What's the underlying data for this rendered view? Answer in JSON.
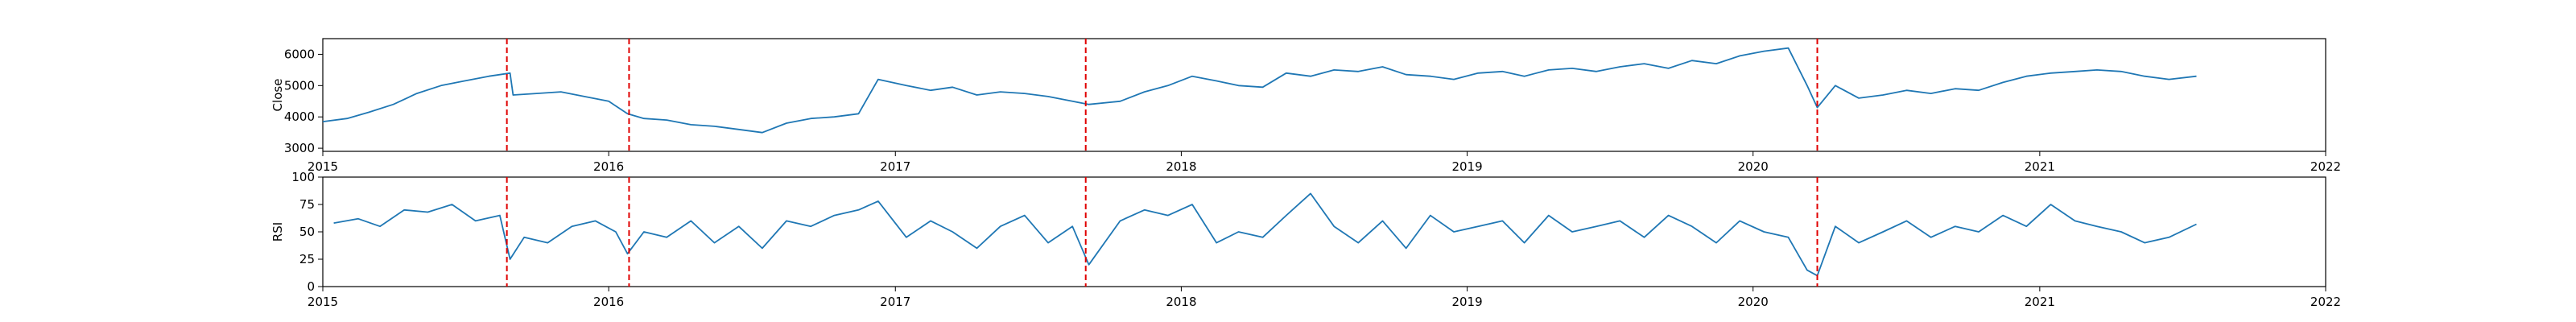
{
  "chart_data": [
    {
      "type": "line",
      "ylabel": "Close",
      "xlim": [
        "2015-01-01",
        "2022-01-01"
      ],
      "ylim": [
        2900,
        6500
      ],
      "x_ticks": [
        "2015",
        "2016",
        "2017",
        "2018",
        "2019",
        "2020",
        "2021",
        "2022"
      ],
      "y_ticks": [
        3000,
        4000,
        5000,
        6000
      ],
      "line_color": "#1f77b4",
      "series": [
        {
          "x": [
            "2015-01-01",
            "2015-02-01",
            "2015-03-01",
            "2015-04-01",
            "2015-05-01",
            "2015-06-01",
            "2015-07-01",
            "2015-08-01",
            "2015-08-28",
            "2015-09-01",
            "2015-10-01",
            "2015-11-01",
            "2015-12-01",
            "2016-01-01",
            "2016-01-25",
            "2016-02-15",
            "2016-03-15",
            "2016-04-15",
            "2016-05-15",
            "2016-06-15",
            "2016-07-15",
            "2016-08-15",
            "2016-09-15",
            "2016-10-15",
            "2016-11-15",
            "2016-12-10",
            "2017-01-15",
            "2017-02-15",
            "2017-03-15",
            "2017-04-15",
            "2017-05-15",
            "2017-06-15",
            "2017-07-15",
            "2017-08-15",
            "2017-09-05",
            "2017-10-15",
            "2017-11-15",
            "2017-12-15",
            "2018-01-15",
            "2018-02-15",
            "2018-03-15",
            "2018-04-15",
            "2018-05-15",
            "2018-06-15",
            "2018-07-15",
            "2018-08-15",
            "2018-09-15",
            "2018-10-15",
            "2018-11-15",
            "2018-12-15",
            "2019-01-15",
            "2019-02-15",
            "2019-03-15",
            "2019-04-15",
            "2019-05-15",
            "2019-06-15",
            "2019-07-15",
            "2019-08-15",
            "2019-09-15",
            "2019-10-15",
            "2019-11-15",
            "2019-12-15",
            "2020-01-15",
            "2020-02-15",
            "2020-03-10",
            "2020-03-23",
            "2020-04-15",
            "2020-05-15",
            "2020-06-15",
            "2020-07-15",
            "2020-08-15",
            "2020-09-15",
            "2020-10-15",
            "2020-11-15",
            "2020-12-15",
            "2021-01-15",
            "2021-02-15",
            "2021-03-15",
            "2021-04-15",
            "2021-05-15",
            "2021-06-15",
            "2021-07-20"
          ],
          "y": [
            3850,
            3950,
            4150,
            4400,
            4750,
            5000,
            5150,
            5300,
            5400,
            4700,
            4750,
            4800,
            4650,
            4500,
            4100,
            3950,
            3900,
            3750,
            3700,
            3600,
            3500,
            3800,
            3950,
            4000,
            4100,
            5200,
            5000,
            4850,
            4950,
            4700,
            4800,
            4750,
            4650,
            4500,
            4400,
            4500,
            4800,
            5000,
            5300,
            5150,
            5000,
            4950,
            5400,
            5300,
            5500,
            5450,
            5600,
            5350,
            5300,
            5200,
            5400,
            5450,
            5300,
            5500,
            5550,
            5450,
            5600,
            5700,
            5550,
            5800,
            5700,
            5950,
            6100,
            6200,
            5000,
            4300,
            5000,
            4600,
            4700,
            4850,
            4750,
            4900,
            4850,
            5100,
            5300,
            5400,
            5450,
            5500,
            5450,
            5300,
            5200,
            5300
          ]
        }
      ]
    },
    {
      "type": "line",
      "ylabel": "RSI",
      "xlim": [
        "2015-01-01",
        "2022-01-01"
      ],
      "ylim": [
        0,
        100
      ],
      "x_ticks": [
        "2015",
        "2016",
        "2017",
        "2018",
        "2019",
        "2020",
        "2021",
        "2022"
      ],
      "y_ticks": [
        0,
        25,
        50,
        75,
        100
      ],
      "line_color": "#1f77b4",
      "series": [
        {
          "x": [
            "2015-01-15",
            "2015-02-15",
            "2015-03-15",
            "2015-04-15",
            "2015-05-15",
            "2015-06-15",
            "2015-07-15",
            "2015-08-15",
            "2015-08-28",
            "2015-09-15",
            "2015-10-15",
            "2015-11-15",
            "2015-12-15",
            "2016-01-10",
            "2016-01-25",
            "2016-02-15",
            "2016-03-15",
            "2016-04-15",
            "2016-05-15",
            "2016-06-15",
            "2016-07-15",
            "2016-08-15",
            "2016-09-15",
            "2016-10-15",
            "2016-11-15",
            "2016-12-10",
            "2017-01-15",
            "2017-02-15",
            "2017-03-15",
            "2017-04-15",
            "2017-05-15",
            "2017-06-15",
            "2017-07-15",
            "2017-08-15",
            "2017-09-05",
            "2017-10-15",
            "2017-11-15",
            "2017-12-15",
            "2018-01-15",
            "2018-02-15",
            "2018-03-15",
            "2018-04-15",
            "2018-05-15",
            "2018-06-15",
            "2018-07-15",
            "2018-08-15",
            "2018-09-15",
            "2018-10-15",
            "2018-11-15",
            "2018-12-15",
            "2019-01-15",
            "2019-02-15",
            "2019-03-15",
            "2019-04-15",
            "2019-05-15",
            "2019-06-15",
            "2019-07-15",
            "2019-08-15",
            "2019-09-15",
            "2019-10-15",
            "2019-11-15",
            "2019-12-15",
            "2020-01-15",
            "2020-02-15",
            "2020-03-10",
            "2020-03-23",
            "2020-04-15",
            "2020-05-15",
            "2020-06-15",
            "2020-07-15",
            "2020-08-15",
            "2020-09-15",
            "2020-10-15",
            "2020-11-15",
            "2020-12-15",
            "2021-01-15",
            "2021-02-15",
            "2021-03-15",
            "2021-04-15",
            "2021-05-15",
            "2021-06-15",
            "2021-07-20"
          ],
          "y": [
            58,
            62,
            55,
            70,
            68,
            75,
            60,
            65,
            25,
            45,
            40,
            55,
            60,
            50,
            30,
            50,
            45,
            60,
            40,
            55,
            35,
            60,
            55,
            65,
            70,
            78,
            45,
            60,
            50,
            35,
            55,
            65,
            40,
            55,
            20,
            60,
            70,
            65,
            75,
            40,
            50,
            45,
            65,
            85,
            55,
            40,
            60,
            35,
            65,
            50,
            55,
            60,
            40,
            65,
            50,
            55,
            60,
            45,
            65,
            55,
            40,
            60,
            50,
            45,
            15,
            10,
            55,
            40,
            50,
            60,
            45,
            55,
            50,
            65,
            55,
            75,
            60,
            55,
            50,
            40,
            45,
            57
          ]
        }
      ]
    }
  ],
  "event_markers": {
    "color": "#e00000",
    "dates": [
      "2015-08-24",
      "2016-01-27",
      "2017-09-01",
      "2020-03-23"
    ]
  }
}
